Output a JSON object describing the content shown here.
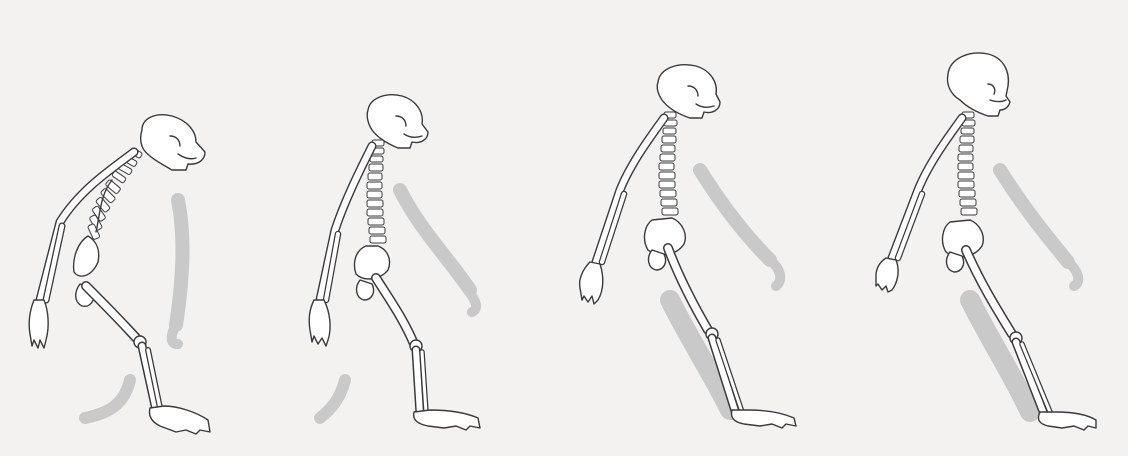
{
  "colors": {
    "background": "#f3f2f0",
    "silhouette": "#c9c9c9",
    "bone_fill": "#ffffff",
    "bone_outline": "#3a3a3a"
  },
  "figures": [
    {
      "id": "figure-1",
      "description_icon": "chimpanzee-skeleton-icon"
    },
    {
      "id": "figure-2",
      "description_icon": "australopithecus-skeleton-icon"
    },
    {
      "id": "figure-3",
      "description_icon": "homo-erectus-skeleton-icon"
    },
    {
      "id": "figure-4",
      "description_icon": "homo-sapiens-skeleton-icon"
    }
  ]
}
